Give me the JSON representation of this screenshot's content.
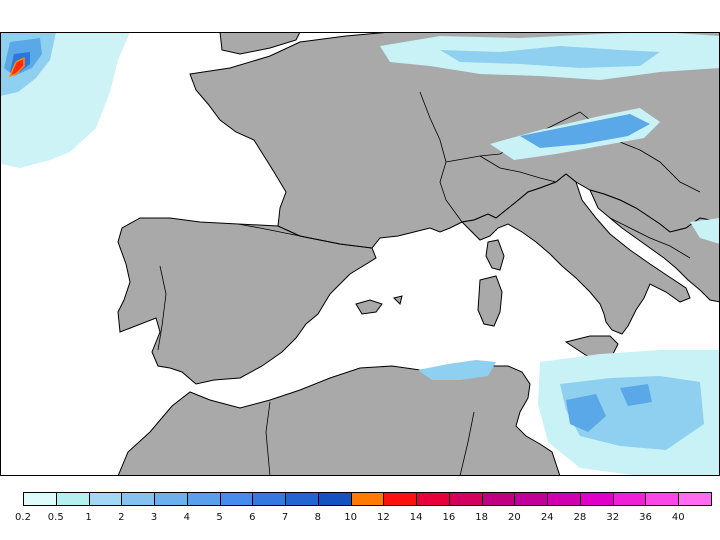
{
  "map": {
    "region": "Western Mediterranean / Southern Europe",
    "colors": {
      "sea": "#ffffff",
      "land": "#a9a9a9",
      "coast": "#000000",
      "precip_light": "#c8f2f6",
      "precip_mid": "#8fd0f0",
      "precip_blue": "#5aa8e8",
      "precip_deep": "#2a78dc",
      "precip_max": "#ff2a10"
    }
  },
  "legend": {
    "thresholds": [
      "0.2",
      "0.5",
      "1",
      "2",
      "3",
      "4",
      "5",
      "6",
      "7",
      "8",
      "10",
      "12",
      "14",
      "16",
      "18",
      "20",
      "24",
      "28",
      "32",
      "36",
      "40"
    ],
    "colors": [
      "#dffcfc",
      "#b4f0f0",
      "#a2d8f4",
      "#86c2f0",
      "#6eb0ee",
      "#5a9eec",
      "#468cea",
      "#3478e0",
      "#2464d0",
      "#1452c2",
      "#ff7a00",
      "#ff1010",
      "#e8003a",
      "#d40060",
      "#c00080",
      "#c00098",
      "#d000b0",
      "#e000c8",
      "#f020d8",
      "#f848e8",
      "#ff6cf0"
    ]
  }
}
